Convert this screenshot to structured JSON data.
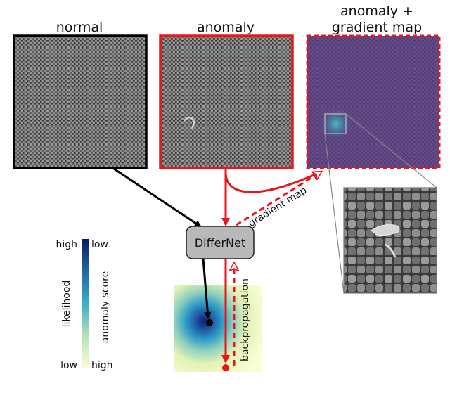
{
  "labels": {
    "normal": "normal",
    "anomaly": "anomaly",
    "grad_line1": "anomaly +",
    "grad_line2": "gradient map",
    "network": "DifferNet",
    "gradient_map_arrow": "gradient map",
    "backprop_arrow": "backpropagation"
  },
  "colorbar": {
    "left_top": "high",
    "left_bottom": "low",
    "left_axis": "likelihood",
    "right_top": "low",
    "right_bottom": "high",
    "right_axis": "anomaly score"
  },
  "colors": {
    "normal_border": "#000000",
    "anomaly_border": "#e8161b",
    "arrow_black": "#000000",
    "arrow_red": "#e8161b",
    "overlay_purple": "#5b3a86",
    "network_fill": "#b9b9b9"
  },
  "icons": {
    "zoom": "magnified-fabric-defect",
    "density": "likelihood-density-map"
  }
}
